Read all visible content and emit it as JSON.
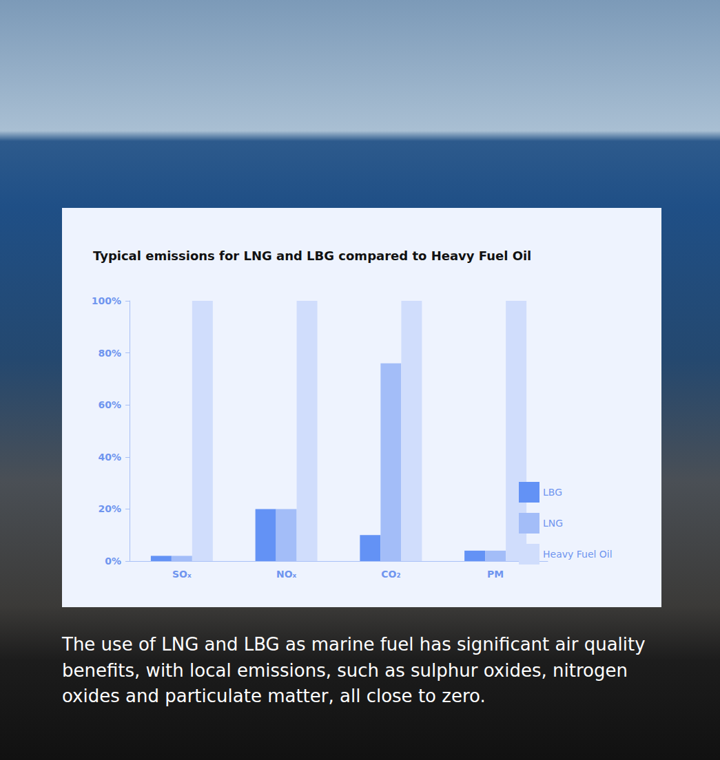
{
  "chart_data": {
    "type": "bar",
    "title": "Typical emissions for LNG and LBG compared to Heavy Fuel Oil",
    "categories": [
      "SOₓ",
      "NOₓ",
      "CO₂",
      "PM"
    ],
    "series": [
      {
        "name": "LBG",
        "color": "#6392f5",
        "values": [
          2,
          20,
          10,
          4
        ]
      },
      {
        "name": "LNG",
        "color": "#a3bdf8",
        "values": [
          2,
          20,
          76,
          4
        ]
      },
      {
        "name": "Heavy Fuel Oil",
        "color": "#d0ddfc",
        "values": [
          100,
          100,
          100,
          100
        ]
      }
    ],
    "ylim": [
      0,
      100
    ],
    "yticks": [
      {
        "value": 0,
        "label": "0%"
      },
      {
        "value": 20,
        "label": "20%"
      },
      {
        "value": 40,
        "label": "40%"
      },
      {
        "value": 60,
        "label": "60%"
      },
      {
        "value": 80,
        "label": "80%"
      },
      {
        "value": 100,
        "label": "100%"
      }
    ],
    "grid": false,
    "legend": "right"
  },
  "caption": "The use of LNG and LBG as marine fuel has significant air quality benefits, with local emissions, such as sulphur oxides, nitrogen oxides and particulate matter, all close to zero."
}
